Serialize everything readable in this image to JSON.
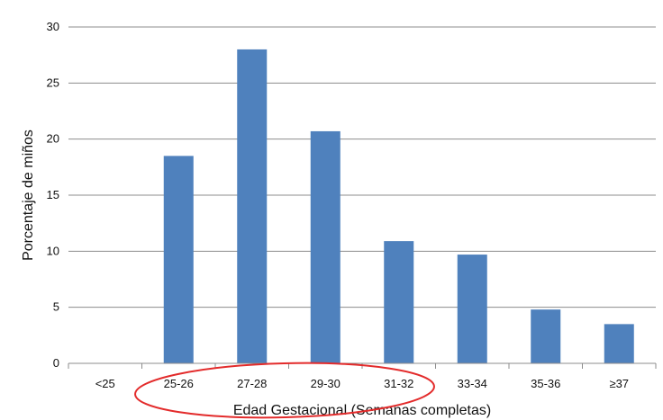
{
  "chart_data": {
    "type": "bar",
    "categories": [
      "<25",
      "25-26",
      "27-28",
      "29-30",
      "31-32",
      "33-34",
      "35-36",
      "≥37"
    ],
    "values": [
      0,
      18.5,
      28.0,
      20.7,
      10.9,
      9.7,
      4.8,
      3.5
    ],
    "title": "",
    "xlabel": "Edad Gestacional (Semanas completas)",
    "ylabel": "Porcentaje de miños",
    "ylim": [
      0,
      30
    ],
    "yticks": [
      0,
      5,
      10,
      15,
      20,
      25,
      30
    ],
    "grid": true,
    "legend": "none",
    "bar_color": "#4f81bd",
    "grid_color": "#8c8c8c",
    "annotation_color": "#e32b2b"
  }
}
